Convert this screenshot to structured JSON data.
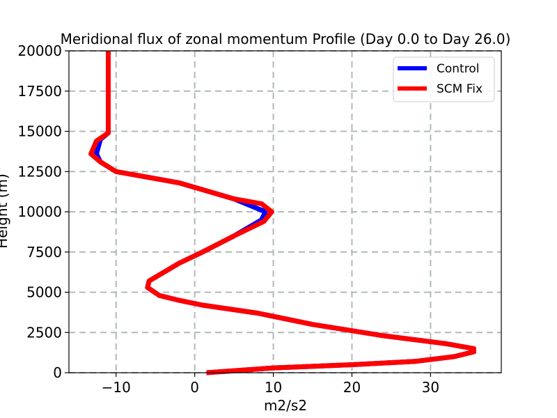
{
  "chart_data": {
    "type": "line",
    "title": "Meridional flux of zonal momentum Profile (Day 0.0 to Day 26.0)",
    "xlabel": "m2/s2",
    "ylabel": "Height (m)",
    "xlim": [
      -16,
      39
    ],
    "ylim": [
      0,
      20000
    ],
    "xticks": [
      -10,
      0,
      10,
      20,
      30
    ],
    "xtick_labels": [
      "−10",
      "0",
      "10",
      "20",
      "30"
    ],
    "yticks": [
      0,
      2500,
      5000,
      7500,
      10000,
      12500,
      15000,
      17500,
      20000
    ],
    "ytick_labels": [
      "0",
      "2500",
      "5000",
      "7500",
      "10000",
      "12500",
      "15000",
      "17500",
      "20000"
    ],
    "grid": true,
    "legend_position": "top-right",
    "series": [
      {
        "name": "Control",
        "color": "#0000ff",
        "x": [
          1.5,
          10,
          20,
          28,
          33,
          35.5,
          35.5,
          32,
          24,
          15,
          8,
          1,
          -2,
          -4.5,
          -6,
          -5.8,
          -2,
          1,
          5,
          8.5,
          9,
          5,
          -2,
          -10,
          -12,
          -12.5,
          -12,
          -11,
          -11,
          -11
        ],
        "y": [
          0,
          300,
          500,
          700,
          1000,
          1300,
          1500,
          1800,
          2300,
          3000,
          3700,
          4200,
          4500,
          4800,
          5300,
          5700,
          6800,
          7500,
          8500,
          9500,
          10000,
          10800,
          11800,
          12500,
          13100,
          13600,
          14500,
          14900,
          17500,
          20000
        ]
      },
      {
        "name": "SCM Fix",
        "color": "#ff0000",
        "x": [
          1.5,
          10,
          20,
          28,
          33,
          35.5,
          35.5,
          32,
          24,
          15,
          8,
          1,
          -2,
          -4.5,
          -6,
          -5.8,
          -2,
          1,
          5,
          8.8,
          9.8,
          8.5,
          5,
          -2,
          -10,
          -12,
          -13.2,
          -12.5,
          -11,
          -11,
          -11
        ],
        "y": [
          0,
          300,
          500,
          700,
          1000,
          1300,
          1500,
          1800,
          2300,
          3000,
          3700,
          4200,
          4500,
          4800,
          5300,
          5700,
          6800,
          7500,
          8500,
          9400,
          10000,
          10500,
          10800,
          11800,
          12500,
          13100,
          13600,
          14400,
          14900,
          17500,
          20000
        ]
      }
    ]
  }
}
